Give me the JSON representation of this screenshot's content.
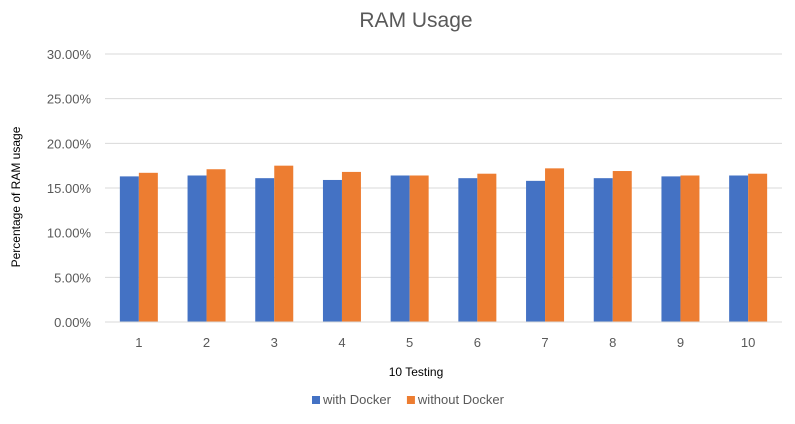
{
  "chart_data": {
    "type": "bar",
    "title": "RAM Usage",
    "xlabel": "10 Testing",
    "ylabel": "Percentage of RAM usage",
    "categories": [
      "1",
      "2",
      "3",
      "4",
      "5",
      "6",
      "7",
      "8",
      "9",
      "10"
    ],
    "series": [
      {
        "name": "with Docker",
        "color": "#4472C4",
        "values": [
          16.3,
          16.4,
          16.1,
          15.9,
          16.4,
          16.1,
          15.8,
          16.1,
          16.3,
          16.4
        ]
      },
      {
        "name": "without Docker",
        "color": "#ED7D31",
        "values": [
          16.7,
          17.1,
          17.5,
          16.8,
          16.4,
          16.6,
          17.2,
          16.9,
          16.4,
          16.6
        ]
      }
    ],
    "ylim": [
      0,
      30
    ],
    "yticks": [
      "0.00%",
      "5.00%",
      "10.00%",
      "15.00%",
      "20.00%",
      "25.00%",
      "30.00%"
    ],
    "grid": true,
    "legend_position": "bottom"
  }
}
